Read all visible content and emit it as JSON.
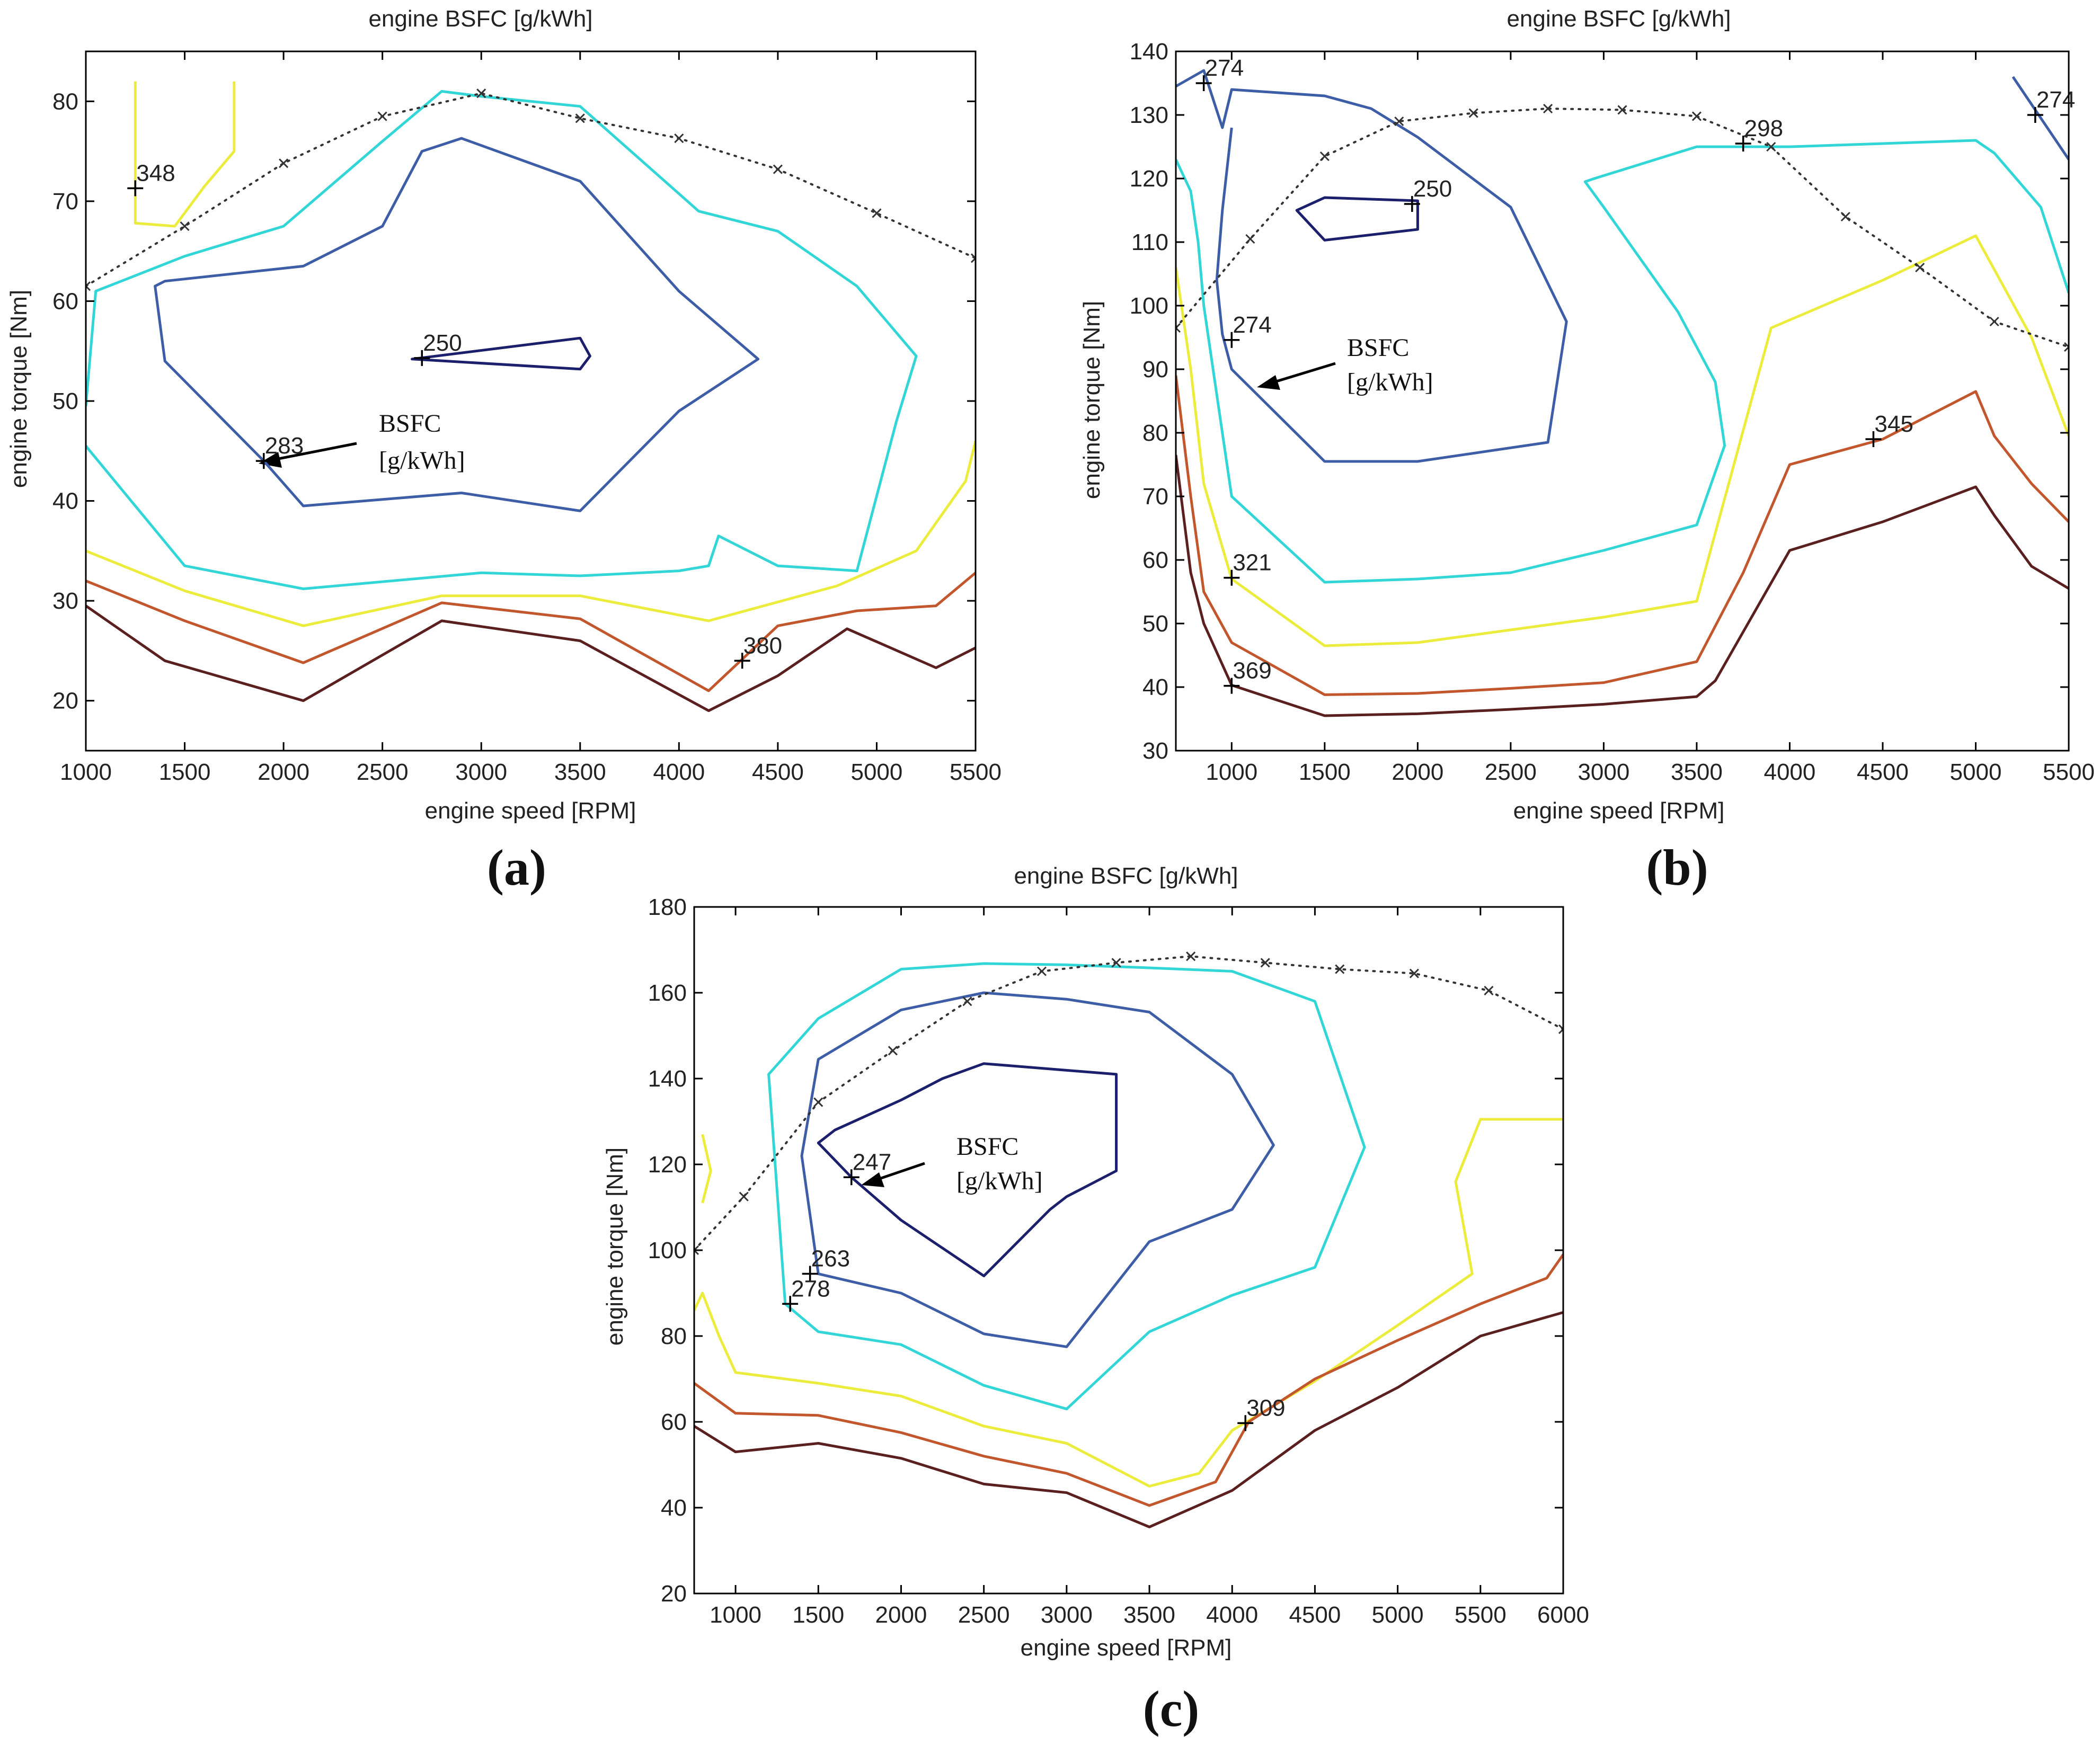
{
  "colors": {
    "level_250": "#1c1f6b",
    "level_mid": "#3d5ea7",
    "level_cyan": "#33d6d6",
    "level_yellow": "#ecec3c",
    "level_orange": "#c2562d",
    "level_brown": "#5a1f1f",
    "wot": "#333333"
  },
  "chart_data": [
    {
      "type": "contour",
      "panel": "(a)",
      "title": "engine BSFC [g/kWh]",
      "xlabel": "engine speed [RPM]",
      "ylabel": "engine torque [Nm]",
      "xlim": [
        1000,
        5500
      ],
      "ylim": [
        15,
        85
      ],
      "xticks": [
        1000,
        1500,
        2000,
        2500,
        3000,
        3500,
        4000,
        4500,
        5000,
        5500
      ],
      "yticks": [
        20,
        30,
        40,
        50,
        60,
        70,
        80
      ],
      "annotation": "BSFC\n[g/kWh]",
      "annotation_lines": [
        "BSFC",
        "[g/kWh]"
      ],
      "max_torque_curve": {
        "x": [
          1000,
          1500,
          2000,
          2500,
          3000,
          3500,
          4000,
          4500,
          5000,
          5500
        ],
        "y": [
          61.5,
          67.5,
          73.8,
          78.5,
          80.8,
          78.3,
          76.3,
          73.2,
          68.8,
          64.3
        ]
      },
      "contours": [
        {
          "level": 250,
          "color_key": "level_250",
          "closed": true,
          "x": [
            2650,
            3500,
            3550,
            3500,
            2650
          ],
          "y": [
            54.2,
            56.3,
            54.5,
            53.2,
            54.2
          ]
        },
        {
          "level": 283,
          "color_key": "level_mid",
          "closed": true,
          "x": [
            1350,
            1400,
            2100,
            2500,
            2700,
            2900,
            3500,
            4000,
            4400,
            4000,
            3500,
            2900,
            2100,
            1900,
            1400
          ],
          "y": [
            61.5,
            62,
            63.5,
            67.5,
            75,
            76.3,
            72,
            61,
            54.2,
            49,
            39,
            40.8,
            39.5,
            44,
            54
          ]
        },
        {
          "level": "cyan",
          "color_key": "level_cyan",
          "closed": false,
          "x": [
            1000,
            1050,
            1500,
            2000,
            2500,
            2800,
            3000,
            3500,
            4100,
            4500,
            4900,
            5200,
            5100,
            4900,
            4500,
            4200,
            4150,
            4000,
            3500,
            3000,
            2100,
            1500,
            1000
          ],
          "y": [
            49.5,
            61,
            64.5,
            67.5,
            76,
            81,
            80.5,
            79.5,
            69,
            67,
            61.5,
            54.5,
            48,
            33,
            33.5,
            36.5,
            33.5,
            33,
            32.5,
            32.8,
            31.2,
            33.5,
            45.5
          ]
        },
        {
          "level": "yellow",
          "color_key": "level_yellow",
          "closed": false,
          "x": [
            1250,
            1250,
            1450,
            1600,
            1750,
            1750
          ],
          "y": [
            82,
            67.8,
            67.5,
            71.5,
            75,
            82
          ]
        },
        {
          "level": "yellow",
          "color_key": "level_yellow",
          "closed": false,
          "x": [
            1000,
            1500,
            2100,
            2800,
            3500,
            4150,
            4800,
            5200,
            5450,
            5500
          ],
          "y": [
            35,
            31,
            27.5,
            30.5,
            30.5,
            28,
            31.5,
            35,
            42,
            46
          ]
        },
        {
          "level": 380,
          "color_key": "level_orange",
          "closed": false,
          "x": [
            1000,
            1500,
            2100,
            2800,
            3500,
            4150,
            4500,
            4900,
            5300,
            5500
          ],
          "y": [
            32,
            28,
            23.8,
            29.8,
            28.2,
            21,
            27.5,
            29,
            29.5,
            32.8
          ]
        },
        {
          "level": "brown",
          "color_key": "level_brown",
          "closed": false,
          "x": [
            1000,
            1400,
            2100,
            2800,
            3500,
            4150,
            4500,
            4850,
            5300,
            5500
          ],
          "y": [
            29.5,
            24,
            20,
            28,
            26,
            19,
            22.5,
            27.2,
            23.3,
            25.3
          ]
        }
      ],
      "labels": [
        {
          "text": "250",
          "x": 2700,
          "y": 54.3
        },
        {
          "text": "283",
          "x": 1900,
          "y": 44
        },
        {
          "text": "348",
          "x": 1250,
          "y": 71.3
        },
        {
          "text": "380",
          "x": 4320,
          "y": 24
        }
      ]
    },
    {
      "type": "contour",
      "panel": "(b)",
      "title": "engine BSFC [g/kWh]",
      "xlabel": "engine speed [RPM]",
      "ylabel": "engine torque [Nm]",
      "xlim": [
        700,
        5500
      ],
      "ylim": [
        30,
        140
      ],
      "xticks": [
        1000,
        1500,
        2000,
        2500,
        3000,
        3500,
        4000,
        4500,
        5000,
        5500
      ],
      "yticks": [
        30,
        40,
        50,
        60,
        70,
        80,
        90,
        100,
        110,
        120,
        130,
        140
      ],
      "annotation_lines": [
        "BSFC",
        "[g/kWh]"
      ],
      "max_torque_curve": {
        "x": [
          700,
          1100,
          1500,
          1900,
          2300,
          2700,
          3100,
          3500,
          3900,
          4300,
          4700,
          5100,
          5500
        ],
        "y": [
          96.5,
          110.5,
          123.5,
          129,
          130.3,
          131,
          130.8,
          129.8,
          125,
          114,
          106,
          97.5,
          93.5
        ]
      },
      "contours": [
        {
          "level": 250,
          "color_key": "level_250",
          "closed": true,
          "x": [
            1350,
            1500,
            2000,
            2000,
            1500,
            1350
          ],
          "y": [
            115,
            117,
            116.5,
            112,
            110.3,
            115
          ]
        },
        {
          "level": 274,
          "color_key": "level_mid",
          "closed": false,
          "x": [
            700,
            850,
            950,
            1000,
            1500,
            1750,
            2000,
            2500,
            2800,
            2700,
            2000,
            1500,
            1000,
            950,
            920,
            950,
            1000
          ],
          "y": [
            134.5,
            137,
            128,
            134,
            133,
            131,
            126.5,
            115.5,
            97.5,
            78.5,
            75.5,
            75.5,
            90,
            95.5,
            104,
            115,
            128
          ]
        },
        {
          "level": 274,
          "color_key": "level_mid",
          "closed": false,
          "x": [
            5200,
            5500
          ],
          "y": [
            136,
            123
          ]
        },
        {
          "level": "cyan",
          "color_key": "level_cyan",
          "closed": false,
          "x": [
            700,
            780,
            820,
            850,
            900,
            1000,
            1500,
            2000,
            2500,
            3000,
            3500,
            3650,
            3600,
            3400,
            3000,
            2900,
            2950,
            3500,
            3800,
            4000,
            5000,
            5100,
            5350,
            5500
          ],
          "y": [
            123,
            118,
            110,
            100,
            90,
            70,
            56.5,
            57,
            58,
            61.5,
            65.5,
            78,
            88,
            99,
            115.5,
            119.5,
            120,
            125,
            125,
            125,
            126,
            124,
            115.5,
            102
          ]
        },
        {
          "level": 321,
          "color_key": "level_yellow",
          "closed": false,
          "x": [
            700,
            780,
            850,
            1000,
            1500,
            2000,
            2500,
            3000,
            3500,
            3900,
            4500,
            5000,
            5300,
            5500
          ],
          "y": [
            106,
            90,
            72,
            57,
            46.5,
            47,
            49,
            51,
            53.5,
            96.5,
            104,
            111,
            95,
            79.5
          ]
        },
        {
          "level": 345,
          "color_key": "level_orange",
          "closed": false,
          "x": [
            700,
            780,
            850,
            1000,
            1500,
            2000,
            2500,
            3000,
            3500,
            3750,
            4000,
            4500,
            5000,
            5100,
            5300,
            5500
          ],
          "y": [
            89,
            70,
            55,
            47,
            38.8,
            39,
            39.8,
            40.7,
            44,
            58,
            75,
            79,
            86.5,
            79.5,
            72,
            66
          ]
        },
        {
          "level": 369,
          "color_key": "level_brown",
          "closed": false,
          "x": [
            700,
            780,
            850,
            1000,
            1500,
            2000,
            2500,
            3000,
            3500,
            3600,
            4000,
            4500,
            5000,
            5100,
            5300,
            5500
          ],
          "y": [
            76.5,
            58,
            50,
            40.3,
            35.5,
            35.8,
            36.5,
            37.3,
            38.5,
            41,
            61.5,
            66,
            71.5,
            67,
            59,
            55.5
          ]
        }
      ],
      "labels": [
        {
          "text": "274",
          "x": 850,
          "y": 135
        },
        {
          "text": "250",
          "x": 1970,
          "y": 116
        },
        {
          "text": "274",
          "x": 1000,
          "y": 94.6
        },
        {
          "text": "298",
          "x": 3750,
          "y": 125.5
        },
        {
          "text": "274",
          "x": 5320,
          "y": 130
        },
        {
          "text": "321",
          "x": 1000,
          "y": 57.2
        },
        {
          "text": "345",
          "x": 4450,
          "y": 79
        },
        {
          "text": "369",
          "x": 1000,
          "y": 40.2
        }
      ]
    },
    {
      "type": "contour",
      "panel": "(c)",
      "title": "engine BSFC [g/kWh]",
      "xlabel": "engine speed [RPM]",
      "ylabel": "engine torque [Nm]",
      "xlim": [
        750,
        6000
      ],
      "ylim": [
        20,
        180
      ],
      "xticks": [
        1000,
        1500,
        2000,
        2500,
        3000,
        3500,
        4000,
        4500,
        5000,
        5500,
        6000
      ],
      "yticks": [
        20,
        40,
        60,
        80,
        100,
        120,
        140,
        160,
        180
      ],
      "annotation_lines": [
        "BSFC",
        "[g/kWh]"
      ],
      "max_torque_curve": {
        "x": [
          750,
          1050,
          1500,
          1950,
          2400,
          2850,
          3300,
          3750,
          4200,
          4650,
          5100,
          5550,
          6000
        ],
        "y": [
          100,
          112.5,
          134.5,
          146.5,
          158,
          165,
          167,
          168.5,
          167,
          165.5,
          164.5,
          160.5,
          151.5
        ]
      },
      "contours": [
        {
          "level": 247,
          "color_key": "level_250",
          "closed": true,
          "x": [
            1500,
            1600,
            2000,
            2250,
            2500,
            3300,
            3300,
            3000,
            2900,
            2500,
            2000,
            1700,
            1500
          ],
          "y": [
            125,
            128,
            135,
            140,
            143.5,
            141,
            118.5,
            112.5,
            109.5,
            94,
            107,
            117,
            125
          ]
        },
        {
          "level": 263,
          "color_key": "level_mid",
          "closed": true,
          "x": [
            1400,
            1500,
            2000,
            2500,
            3000,
            3500,
            4000,
            4250,
            4000,
            3500,
            3000,
            2500,
            2000,
            1500,
            1400
          ],
          "y": [
            122,
            144.5,
            156,
            160,
            158.5,
            155.5,
            141,
            124.5,
            109.5,
            102,
            77.5,
            80.5,
            90,
            94.5,
            122
          ]
        },
        {
          "level": 278,
          "color_key": "level_cyan",
          "closed": true,
          "x": [
            1200,
            1500,
            2000,
            2500,
            3000,
            3500,
            4000,
            4500,
            4800,
            4500,
            4000,
            3500,
            3000,
            2500,
            2000,
            1500,
            1300,
            1200
          ],
          "y": [
            141,
            154,
            165.5,
            166.8,
            166.5,
            165.8,
            165,
            158,
            124,
            96,
            89.5,
            81,
            63,
            68.5,
            78,
            81,
            87.5,
            141
          ]
        },
        {
          "level": "yellow",
          "color_key": "level_yellow",
          "closed": false,
          "x": [
            800,
            850,
            800
          ],
          "y": [
            127,
            118.5,
            111
          ]
        },
        {
          "level": "yellow",
          "color_key": "level_yellow",
          "closed": false,
          "x": [
            750,
            800,
            900,
            1000,
            1500,
            2000,
            2500,
            3000,
            3500,
            3800,
            4000,
            4500,
            5000,
            5450,
            5350,
            5500,
            6000
          ],
          "y": [
            86,
            90,
            80,
            71.5,
            69,
            66,
            59,
            55,
            45,
            48,
            58,
            69.5,
            82.5,
            94.5,
            116,
            130.5,
            130.5
          ]
        },
        {
          "level": 309,
          "color_key": "level_orange",
          "closed": false,
          "x": [
            750,
            1000,
            1500,
            2000,
            2500,
            3000,
            3500,
            3900,
            4100,
            4500,
            5000,
            5500,
            5900,
            6000
          ],
          "y": [
            69,
            62,
            61.5,
            57.5,
            52,
            48,
            40.5,
            46,
            60,
            70,
            79,
            87.5,
            93.5,
            99
          ]
        },
        {
          "level": "brown",
          "color_key": "level_brown",
          "closed": false,
          "x": [
            750,
            1000,
            1500,
            2000,
            2500,
            3000,
            3500,
            4000,
            4500,
            5000,
            5500,
            6000
          ],
          "y": [
            59,
            53,
            55,
            51.5,
            45.5,
            43.5,
            35.5,
            44,
            58,
            68,
            80,
            85.5
          ]
        }
      ],
      "labels": [
        {
          "text": "247",
          "x": 1700,
          "y": 117
        },
        {
          "text": "263",
          "x": 1450,
          "y": 94.5
        },
        {
          "text": "278",
          "x": 1330,
          "y": 87.5
        },
        {
          "text": "309",
          "x": 4080,
          "y": 59.7
        }
      ]
    }
  ]
}
